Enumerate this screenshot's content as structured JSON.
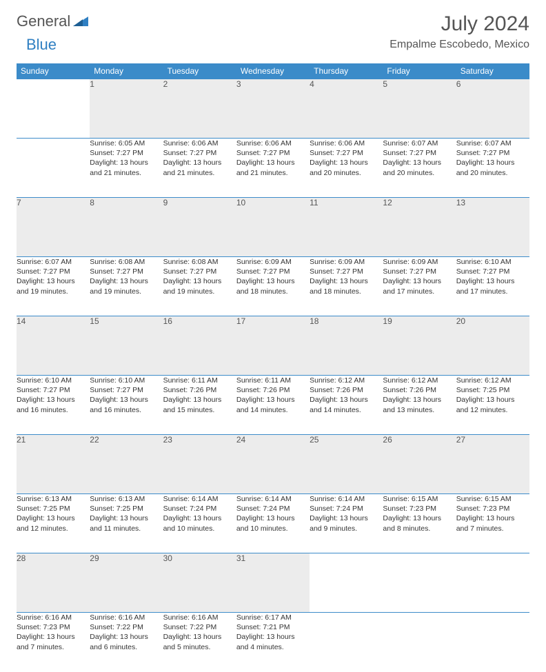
{
  "brand": {
    "general": "General",
    "blue": "Blue"
  },
  "title": "July 2024",
  "location": "Empalme Escobedo, Mexico",
  "colors": {
    "header_bg": "#3b8bc9",
    "header_text": "#ffffff",
    "daynum_bg": "#ececec",
    "rule": "#3b8bc9",
    "text": "#333333",
    "title_text": "#555555",
    "logo_blue": "#2f7fc2"
  },
  "weekdays": [
    "Sunday",
    "Monday",
    "Tuesday",
    "Wednesday",
    "Thursday",
    "Friday",
    "Saturday"
  ],
  "weeks": [
    {
      "nums": [
        "",
        "1",
        "2",
        "3",
        "4",
        "5",
        "6"
      ],
      "cells": [
        {
          "empty": true
        },
        {
          "sunrise": "Sunrise: 6:05 AM",
          "sunset": "Sunset: 7:27 PM",
          "day1": "Daylight: 13 hours",
          "day2": "and 21 minutes."
        },
        {
          "sunrise": "Sunrise: 6:06 AM",
          "sunset": "Sunset: 7:27 PM",
          "day1": "Daylight: 13 hours",
          "day2": "and 21 minutes."
        },
        {
          "sunrise": "Sunrise: 6:06 AM",
          "sunset": "Sunset: 7:27 PM",
          "day1": "Daylight: 13 hours",
          "day2": "and 21 minutes."
        },
        {
          "sunrise": "Sunrise: 6:06 AM",
          "sunset": "Sunset: 7:27 PM",
          "day1": "Daylight: 13 hours",
          "day2": "and 20 minutes."
        },
        {
          "sunrise": "Sunrise: 6:07 AM",
          "sunset": "Sunset: 7:27 PM",
          "day1": "Daylight: 13 hours",
          "day2": "and 20 minutes."
        },
        {
          "sunrise": "Sunrise: 6:07 AM",
          "sunset": "Sunset: 7:27 PM",
          "day1": "Daylight: 13 hours",
          "day2": "and 20 minutes."
        }
      ]
    },
    {
      "nums": [
        "7",
        "8",
        "9",
        "10",
        "11",
        "12",
        "13"
      ],
      "cells": [
        {
          "sunrise": "Sunrise: 6:07 AM",
          "sunset": "Sunset: 7:27 PM",
          "day1": "Daylight: 13 hours",
          "day2": "and 19 minutes."
        },
        {
          "sunrise": "Sunrise: 6:08 AM",
          "sunset": "Sunset: 7:27 PM",
          "day1": "Daylight: 13 hours",
          "day2": "and 19 minutes."
        },
        {
          "sunrise": "Sunrise: 6:08 AM",
          "sunset": "Sunset: 7:27 PM",
          "day1": "Daylight: 13 hours",
          "day2": "and 19 minutes."
        },
        {
          "sunrise": "Sunrise: 6:09 AM",
          "sunset": "Sunset: 7:27 PM",
          "day1": "Daylight: 13 hours",
          "day2": "and 18 minutes."
        },
        {
          "sunrise": "Sunrise: 6:09 AM",
          "sunset": "Sunset: 7:27 PM",
          "day1": "Daylight: 13 hours",
          "day2": "and 18 minutes."
        },
        {
          "sunrise": "Sunrise: 6:09 AM",
          "sunset": "Sunset: 7:27 PM",
          "day1": "Daylight: 13 hours",
          "day2": "and 17 minutes."
        },
        {
          "sunrise": "Sunrise: 6:10 AM",
          "sunset": "Sunset: 7:27 PM",
          "day1": "Daylight: 13 hours",
          "day2": "and 17 minutes."
        }
      ]
    },
    {
      "nums": [
        "14",
        "15",
        "16",
        "17",
        "18",
        "19",
        "20"
      ],
      "cells": [
        {
          "sunrise": "Sunrise: 6:10 AM",
          "sunset": "Sunset: 7:27 PM",
          "day1": "Daylight: 13 hours",
          "day2": "and 16 minutes."
        },
        {
          "sunrise": "Sunrise: 6:10 AM",
          "sunset": "Sunset: 7:27 PM",
          "day1": "Daylight: 13 hours",
          "day2": "and 16 minutes."
        },
        {
          "sunrise": "Sunrise: 6:11 AM",
          "sunset": "Sunset: 7:26 PM",
          "day1": "Daylight: 13 hours",
          "day2": "and 15 minutes."
        },
        {
          "sunrise": "Sunrise: 6:11 AM",
          "sunset": "Sunset: 7:26 PM",
          "day1": "Daylight: 13 hours",
          "day2": "and 14 minutes."
        },
        {
          "sunrise": "Sunrise: 6:12 AM",
          "sunset": "Sunset: 7:26 PM",
          "day1": "Daylight: 13 hours",
          "day2": "and 14 minutes."
        },
        {
          "sunrise": "Sunrise: 6:12 AM",
          "sunset": "Sunset: 7:26 PM",
          "day1": "Daylight: 13 hours",
          "day2": "and 13 minutes."
        },
        {
          "sunrise": "Sunrise: 6:12 AM",
          "sunset": "Sunset: 7:25 PM",
          "day1": "Daylight: 13 hours",
          "day2": "and 12 minutes."
        }
      ]
    },
    {
      "nums": [
        "21",
        "22",
        "23",
        "24",
        "25",
        "26",
        "27"
      ],
      "cells": [
        {
          "sunrise": "Sunrise: 6:13 AM",
          "sunset": "Sunset: 7:25 PM",
          "day1": "Daylight: 13 hours",
          "day2": "and 12 minutes."
        },
        {
          "sunrise": "Sunrise: 6:13 AM",
          "sunset": "Sunset: 7:25 PM",
          "day1": "Daylight: 13 hours",
          "day2": "and 11 minutes."
        },
        {
          "sunrise": "Sunrise: 6:14 AM",
          "sunset": "Sunset: 7:24 PM",
          "day1": "Daylight: 13 hours",
          "day2": "and 10 minutes."
        },
        {
          "sunrise": "Sunrise: 6:14 AM",
          "sunset": "Sunset: 7:24 PM",
          "day1": "Daylight: 13 hours",
          "day2": "and 10 minutes."
        },
        {
          "sunrise": "Sunrise: 6:14 AM",
          "sunset": "Sunset: 7:24 PM",
          "day1": "Daylight: 13 hours",
          "day2": "and 9 minutes."
        },
        {
          "sunrise": "Sunrise: 6:15 AM",
          "sunset": "Sunset: 7:23 PM",
          "day1": "Daylight: 13 hours",
          "day2": "and 8 minutes."
        },
        {
          "sunrise": "Sunrise: 6:15 AM",
          "sunset": "Sunset: 7:23 PM",
          "day1": "Daylight: 13 hours",
          "day2": "and 7 minutes."
        }
      ]
    },
    {
      "nums": [
        "28",
        "29",
        "30",
        "31",
        "",
        "",
        ""
      ],
      "cells": [
        {
          "sunrise": "Sunrise: 6:16 AM",
          "sunset": "Sunset: 7:23 PM",
          "day1": "Daylight: 13 hours",
          "day2": "and 7 minutes."
        },
        {
          "sunrise": "Sunrise: 6:16 AM",
          "sunset": "Sunset: 7:22 PM",
          "day1": "Daylight: 13 hours",
          "day2": "and 6 minutes."
        },
        {
          "sunrise": "Sunrise: 6:16 AM",
          "sunset": "Sunset: 7:22 PM",
          "day1": "Daylight: 13 hours",
          "day2": "and 5 minutes."
        },
        {
          "sunrise": "Sunrise: 6:17 AM",
          "sunset": "Sunset: 7:21 PM",
          "day1": "Daylight: 13 hours",
          "day2": "and 4 minutes."
        },
        {
          "empty": true
        },
        {
          "empty": true
        },
        {
          "empty": true
        }
      ]
    }
  ]
}
